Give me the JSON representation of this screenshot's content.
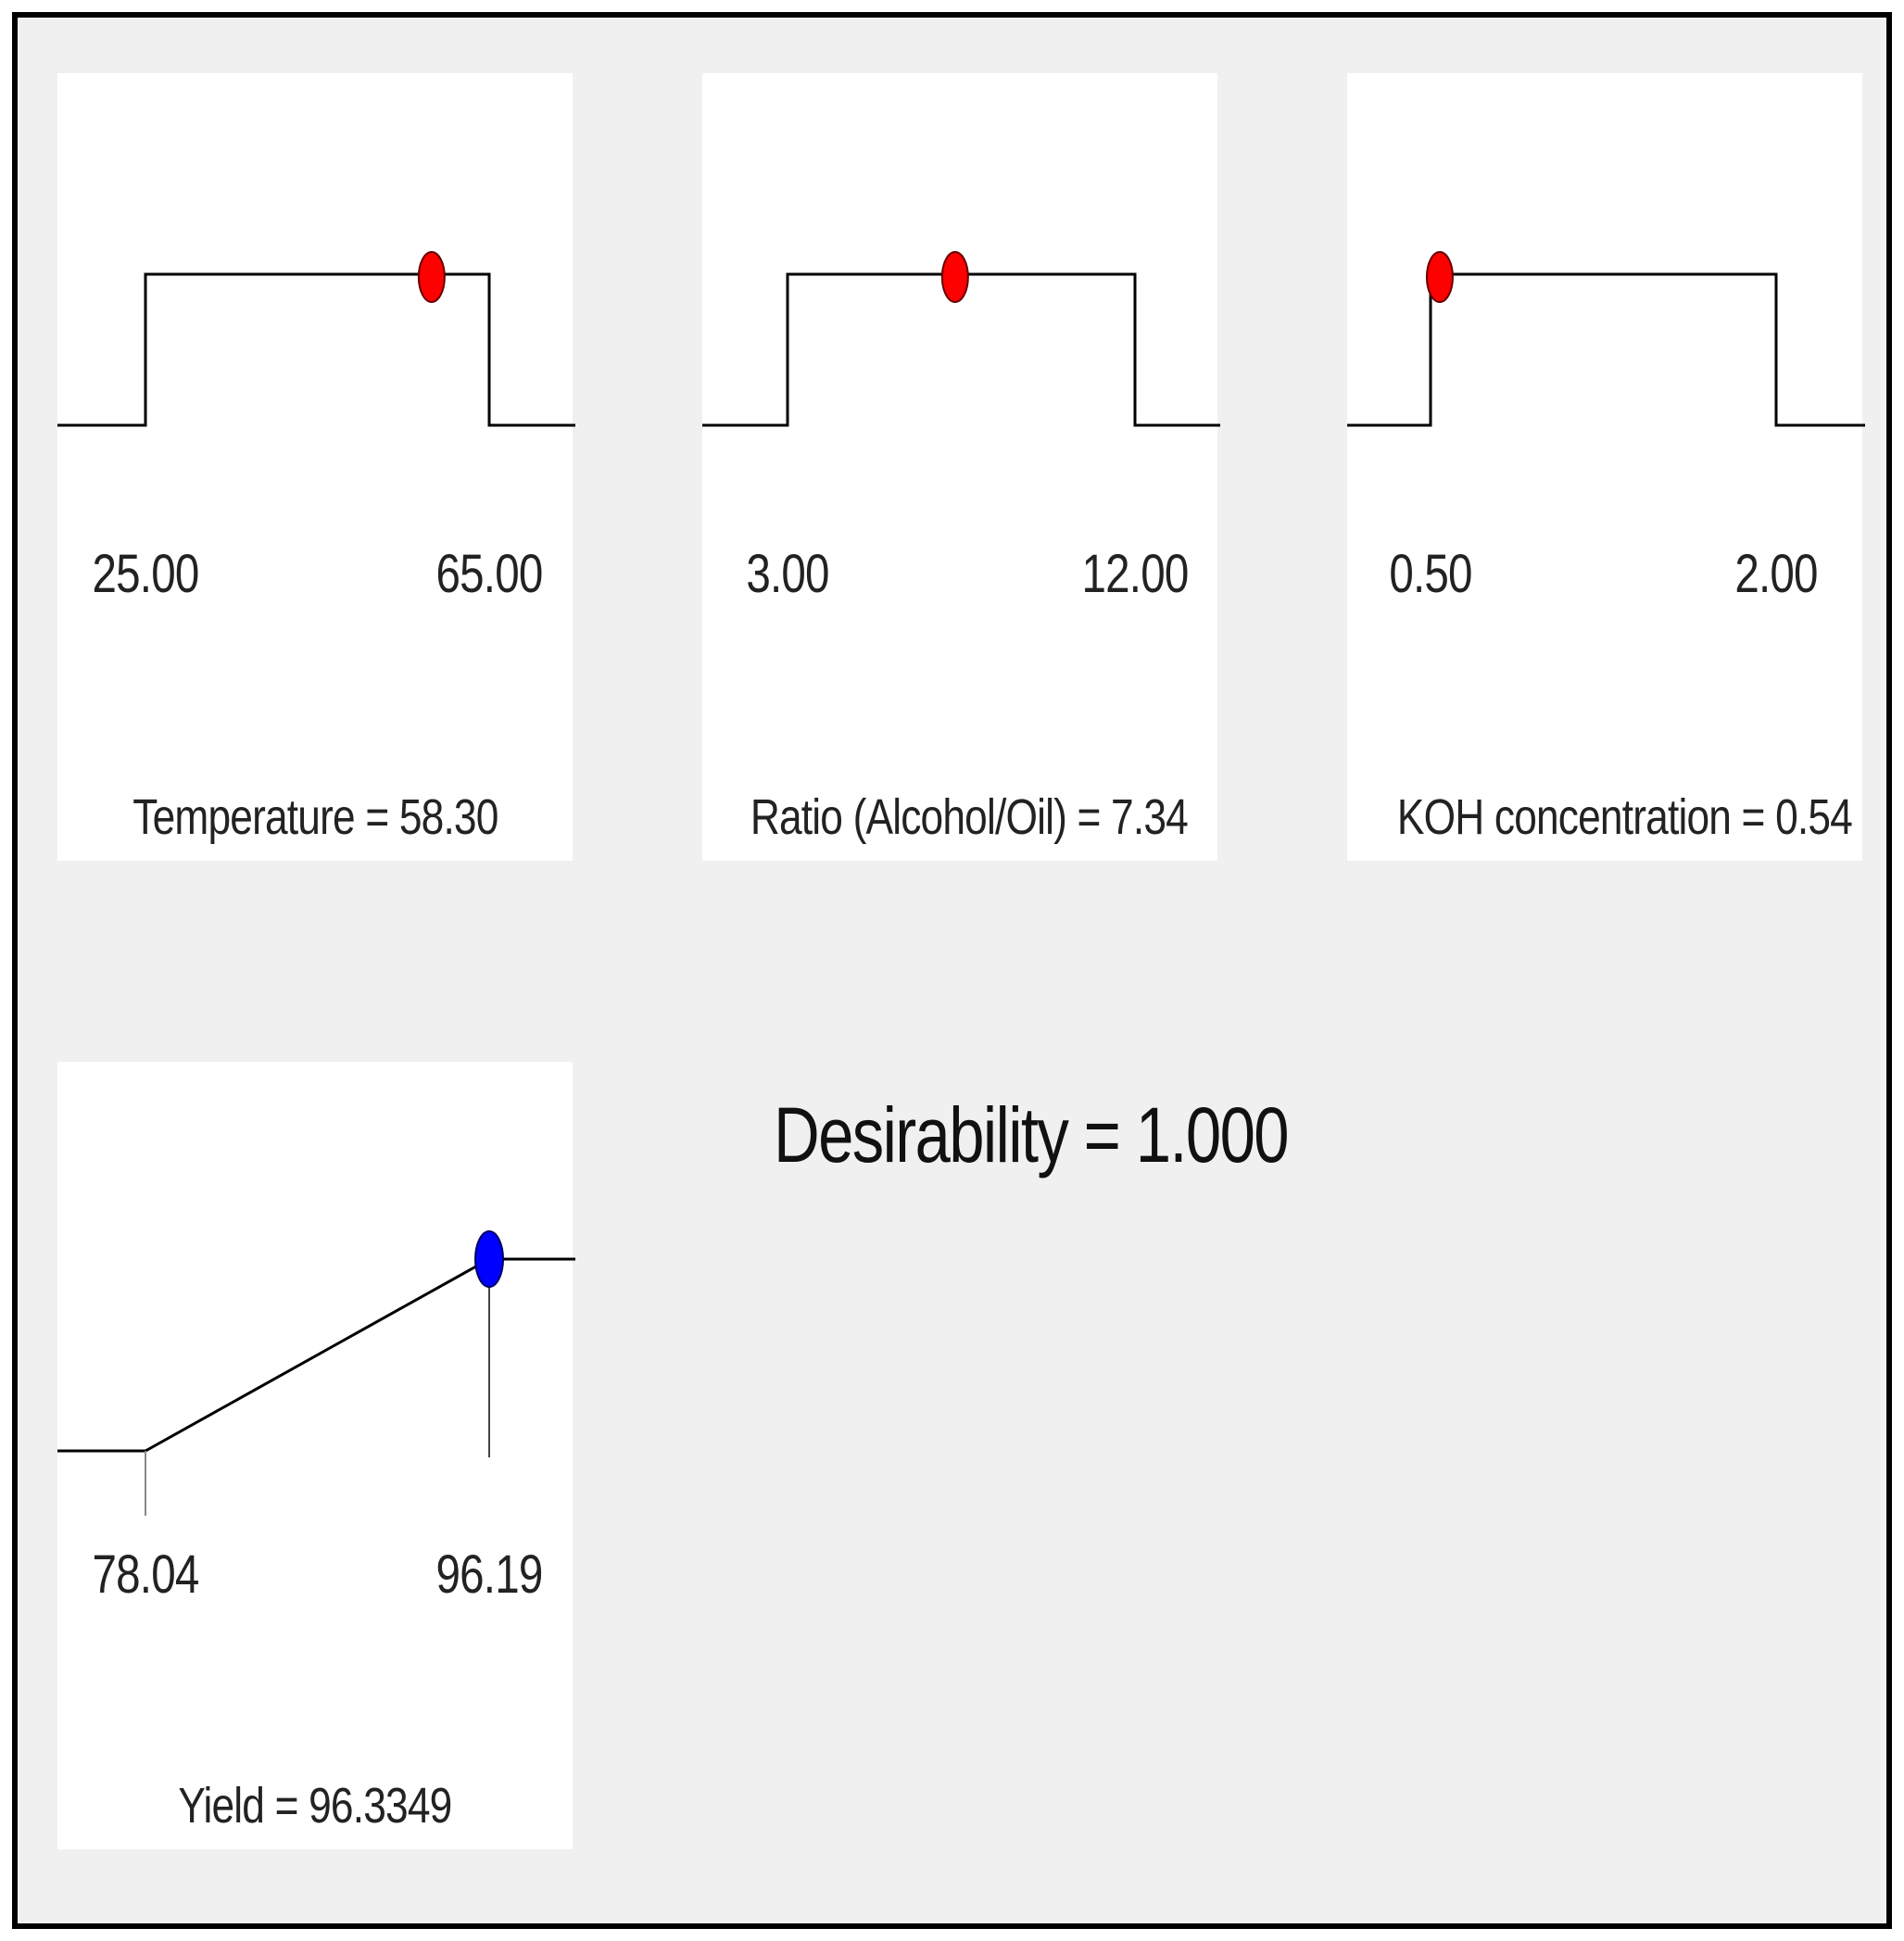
{
  "chart_data": [
    {
      "type": "step",
      "factor": "Temperature",
      "title_text": "Temperature = 58.30",
      "range": [
        25.0,
        65.0
      ],
      "tick_labels": [
        "25.00",
        "65.00"
      ],
      "optimum": 58.3,
      "marker_color": "#ff0000"
    },
    {
      "type": "step",
      "factor": "Ratio (Alcohol/Oil)",
      "title_text": "Ratio (Alcohol/Oil) = 7.34",
      "range": [
        3.0,
        12.0
      ],
      "tick_labels": [
        "3.00",
        "12.00"
      ],
      "optimum": 7.34,
      "marker_color": "#ff0000"
    },
    {
      "type": "step",
      "factor": "KOH concentration",
      "title_text": "KOH concentration  = 0.54",
      "range": [
        0.5,
        2.0
      ],
      "tick_labels": [
        "0.50",
        "2.00"
      ],
      "optimum": 0.54,
      "marker_color": "#ff0000"
    },
    {
      "type": "ramp",
      "response": "Yield",
      "title_text": "Yield = 96.3349",
      "range": [
        78.04,
        96.19
      ],
      "tick_labels": [
        "78.04",
        "96.19"
      ],
      "value": 96.3349,
      "marker_color": "#0000ff"
    }
  ],
  "desirability_text": "Desirability = 1.000",
  "colors": {
    "background": "#f0f0f0",
    "panel": "#ffffff",
    "line": "#000000"
  }
}
